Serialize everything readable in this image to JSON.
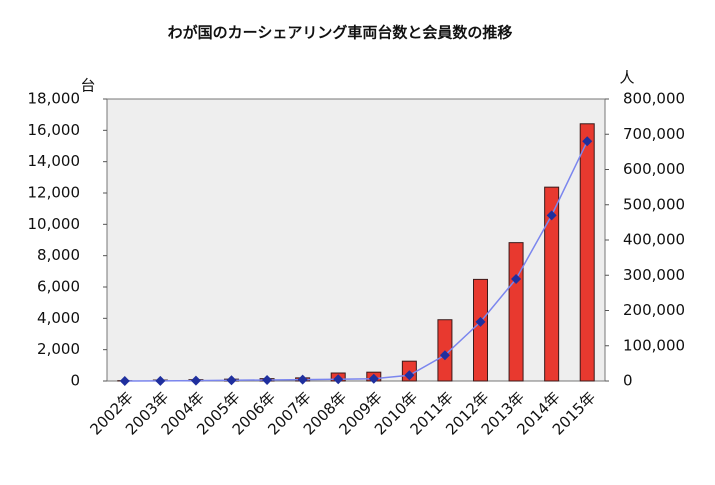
{
  "chart_data": {
    "type": "bar-line",
    "title": "わが国のカーシェアリング車両台数と会員数の推移",
    "y_label": "台",
    "y2_label": "人",
    "categories": [
      "2002年",
      "2003年",
      "2004年",
      "2005年",
      "2006年",
      "2007年",
      "2008年",
      "2009年",
      "2010年",
      "2011年",
      "2012年",
      "2013年",
      "2014年",
      "2015年"
    ],
    "series": [
      {
        "type": "bar",
        "color": "#e8392f",
        "values": [
          21,
          60,
          86,
          118,
          150,
          200,
          510,
          563,
          1265,
          3911,
          6486,
          8831,
          12373,
          16418
        ]
      },
      {
        "type": "line",
        "color": "#7b86ee",
        "marker_color": "#1f2f9e",
        "axis": "y2",
        "values": [
          50,
          200,
          1000,
          2000,
          3000,
          4000,
          5000,
          6396,
          16177,
          73224,
          167745,
          289497,
          469945,
          680000
        ]
      }
    ],
    "ylim": [
      0,
      18000
    ],
    "yticks": [
      0,
      {
        "value": 2000,
        "label": "2,000"
      },
      {
        "value": 4000,
        "label": "4,000"
      },
      {
        "value": 6000,
        "label": "6,000"
      },
      {
        "value": 8000,
        "label": "8,000"
      },
      {
        "value": 10000,
        "label": "10,000"
      },
      {
        "value": 12000,
        "label": "12,000"
      },
      {
        "value": 14000,
        "label": "14,000"
      },
      {
        "value": 16000,
        "label": "16,000"
      },
      {
        "value": 18000,
        "label": "18,000"
      }
    ],
    "y2lim": [
      0,
      800000
    ],
    "y2ticks": [
      0,
      {
        "value": 100000,
        "label": "100,000"
      },
      {
        "value": 200000,
        "label": "200,000"
      },
      {
        "value": 300000,
        "label": "300,000"
      },
      {
        "value": 400000,
        "label": "400,000"
      },
      {
        "value": 500000,
        "label": "500,000"
      },
      {
        "value": 600000,
        "label": "600,000"
      },
      {
        "value": 700000,
        "label": "700,000"
      },
      {
        "value": 800000,
        "label": "800,000"
      }
    ]
  }
}
